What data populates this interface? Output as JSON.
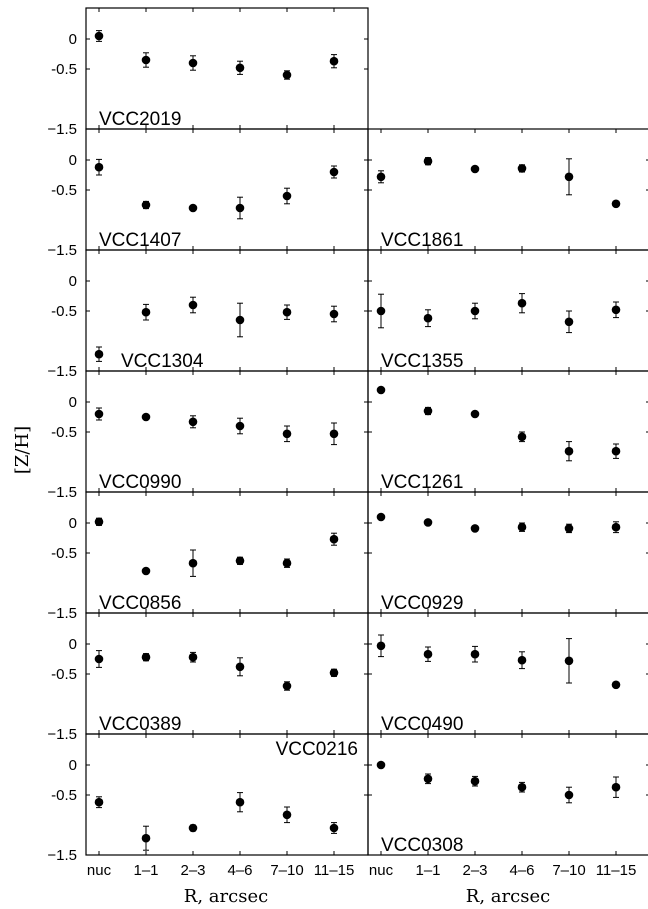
{
  "chart_data": {
    "type": "scatter",
    "layout": "7 rows x 2 columns of panels, shared axes",
    "ylabel": "[Z/H]",
    "xlabel": "R, arcsec",
    "categories": [
      "nuc",
      "1-1",
      "2-3",
      "4-6",
      "7-10",
      "11-15"
    ],
    "category_labels": [
      "nuc",
      "1–1",
      "2–3",
      "4–6",
      "7–10",
      "11–15"
    ],
    "ylim": [
      -1.5,
      0.4
    ],
    "yticks": [
      0,
      -0.5,
      -1.5
    ],
    "ytick_labels": [
      "0",
      "-0.5",
      "−1.5"
    ],
    "grid": false,
    "panels": [
      {
        "name": "VCC2019",
        "row": 0,
        "col": 0,
        "label_pos": "bottom-left",
        "values": [
          0.05,
          -0.35,
          -0.4,
          -0.48,
          -0.6,
          -0.37
        ],
        "errors": [
          0.09,
          0.12,
          0.12,
          0.11,
          0.07,
          0.11
        ]
      },
      {
        "name": "VCC1407",
        "row": 1,
        "col": 0,
        "label_pos": "bottom-left",
        "values": [
          -0.12,
          -0.75,
          -0.8,
          -0.8,
          -0.6,
          -0.2
        ],
        "errors": [
          0.13,
          0.06,
          0.03,
          0.18,
          0.13,
          0.1
        ]
      },
      {
        "name": "VCC1861",
        "row": 1,
        "col": 1,
        "label_pos": "bottom-left",
        "values": [
          -0.28,
          -0.02,
          -0.15,
          -0.14,
          -0.28,
          -0.73
        ],
        "errors": [
          0.1,
          0.06,
          0.03,
          0.06,
          0.3,
          0.04
        ]
      },
      {
        "name": "VCC1304",
        "row": 2,
        "col": 0,
        "label_pos": "bottom-center",
        "values": [
          -1.22,
          -0.52,
          -0.4,
          -0.65,
          -0.52,
          -0.55
        ],
        "errors": [
          0.12,
          0.13,
          0.13,
          0.28,
          0.12,
          0.13
        ]
      },
      {
        "name": "VCC1355",
        "row": 2,
        "col": 1,
        "label_pos": "bottom-left",
        "values": [
          -0.5,
          -0.62,
          -0.5,
          -0.37,
          -0.68,
          -0.48
        ],
        "errors": [
          0.28,
          0.14,
          0.13,
          0.16,
          0.18,
          0.13
        ]
      },
      {
        "name": "VCC0990",
        "row": 3,
        "col": 0,
        "label_pos": "bottom-left",
        "values": [
          -0.2,
          -0.25,
          -0.33,
          -0.4,
          -0.53,
          -0.53
        ],
        "errors": [
          0.1,
          0.03,
          0.1,
          0.13,
          0.13,
          0.18
        ]
      },
      {
        "name": "VCC1261",
        "row": 3,
        "col": 1,
        "label_pos": "bottom-left",
        "values": [
          0.2,
          -0.15,
          -0.2,
          -0.58,
          -0.82,
          -0.82
        ],
        "errors": [
          0.02,
          0.06,
          0.03,
          0.08,
          0.16,
          0.12
        ]
      },
      {
        "name": "VCC0856",
        "row": 4,
        "col": 0,
        "label_pos": "bottom-left",
        "values": [
          0.02,
          -0.8,
          -0.67,
          -0.63,
          -0.67,
          -0.27
        ],
        "errors": [
          0.06,
          0.03,
          0.22,
          0.06,
          0.07,
          0.1
        ]
      },
      {
        "name": "VCC0929",
        "row": 4,
        "col": 1,
        "label_pos": "bottom-left",
        "values": [
          0.1,
          0.01,
          -0.09,
          -0.07,
          -0.09,
          -0.07
        ],
        "errors": [
          0.04,
          0.03,
          0.04,
          0.07,
          0.07,
          0.09
        ]
      },
      {
        "name": "VCC0389",
        "row": 5,
        "col": 0,
        "label_pos": "bottom-left",
        "values": [
          -0.25,
          -0.22,
          -0.22,
          -0.38,
          -0.7,
          -0.48
        ],
        "errors": [
          0.14,
          0.06,
          0.08,
          0.15,
          0.07,
          0.06
        ]
      },
      {
        "name": "VCC0490",
        "row": 5,
        "col": 1,
        "label_pos": "bottom-left",
        "values": [
          -0.03,
          -0.17,
          -0.17,
          -0.27,
          -0.28,
          -0.68
        ],
        "errors": [
          0.18,
          0.12,
          0.13,
          0.14,
          0.37,
          0.04
        ]
      },
      {
        "name": "VCC0216",
        "row": 6,
        "col": 0,
        "label_pos": "top-right",
        "values": [
          -0.62,
          -1.22,
          -1.05,
          -0.62,
          -0.83,
          -1.05
        ],
        "errors": [
          0.09,
          0.2,
          0.05,
          0.16,
          0.13,
          0.09
        ]
      },
      {
        "name": "VCC0308",
        "row": 6,
        "col": 1,
        "label_pos": "bottom-left",
        "values": [
          0.0,
          -0.23,
          -0.27,
          -0.37,
          -0.5,
          -0.37
        ],
        "errors": [
          0.04,
          0.08,
          0.08,
          0.08,
          0.13,
          0.17
        ]
      }
    ]
  }
}
